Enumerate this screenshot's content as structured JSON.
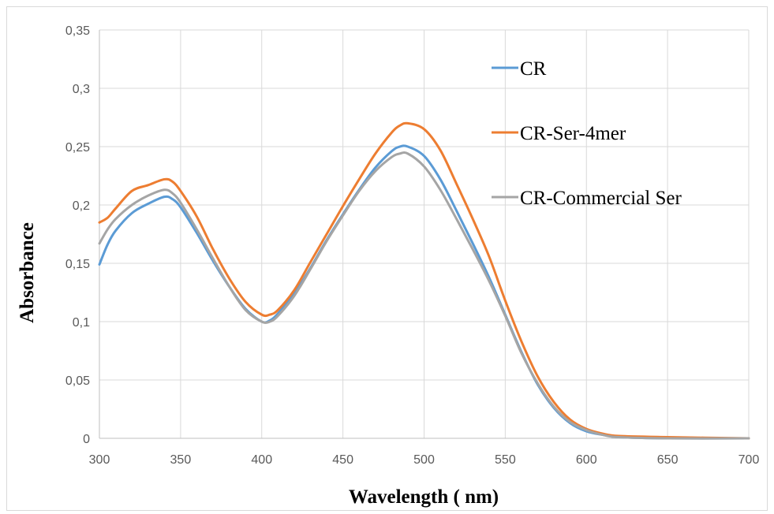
{
  "chart_data": {
    "type": "line",
    "title": "",
    "xlabel": "Wavelength ( nm)",
    "ylabel": "Absorbance",
    "xlim": [
      300,
      700
    ],
    "ylim": [
      0,
      0.35
    ],
    "x_ticks": [
      300,
      350,
      400,
      450,
      500,
      550,
      600,
      650,
      700
    ],
    "x_tick_labels": [
      "300",
      "350",
      "400",
      "450",
      "500",
      "550",
      "600",
      "650",
      "700"
    ],
    "y_ticks": [
      0,
      0.05,
      0.1,
      0.15,
      0.2,
      0.25,
      0.3,
      0.35
    ],
    "y_tick_labels": [
      "0",
      "0,05",
      "0,1",
      "0,15",
      "0,2",
      "0,25",
      "0,3",
      "0,35"
    ],
    "grid": true,
    "legend_position": "top-right",
    "x": [
      300,
      305,
      310,
      320,
      330,
      340,
      345,
      350,
      360,
      370,
      380,
      390,
      400,
      405,
      410,
      420,
      430,
      440,
      450,
      460,
      470,
      480,
      485,
      490,
      500,
      510,
      520,
      530,
      540,
      550,
      560,
      570,
      580,
      590,
      600,
      610,
      620,
      650,
      700
    ],
    "series": [
      {
        "name": "CR",
        "color": "#5b9bd5",
        "values": [
          0.149,
          0.166,
          0.178,
          0.193,
          0.201,
          0.207,
          0.205,
          0.198,
          0.176,
          0.152,
          0.13,
          0.111,
          0.1,
          0.101,
          0.107,
          0.124,
          0.146,
          0.17,
          0.192,
          0.213,
          0.232,
          0.246,
          0.25,
          0.25,
          0.242,
          0.222,
          0.195,
          0.167,
          0.138,
          0.106,
          0.074,
          0.046,
          0.026,
          0.013,
          0.006,
          0.003,
          0.001,
          0.0,
          0.0
        ]
      },
      {
        "name": "CR-Ser-4mer",
        "color": "#ed7d31",
        "values": [
          0.185,
          0.189,
          0.197,
          0.212,
          0.217,
          0.222,
          0.22,
          0.212,
          0.19,
          0.162,
          0.137,
          0.117,
          0.106,
          0.106,
          0.11,
          0.127,
          0.151,
          0.175,
          0.199,
          0.222,
          0.244,
          0.262,
          0.268,
          0.27,
          0.265,
          0.247,
          0.218,
          0.188,
          0.156,
          0.118,
          0.083,
          0.053,
          0.031,
          0.016,
          0.008,
          0.004,
          0.002,
          0.001,
          0.0
        ]
      },
      {
        "name": "CR-Commercial Ser",
        "color": "#a5a5a5",
        "values": [
          0.167,
          0.179,
          0.188,
          0.2,
          0.208,
          0.213,
          0.21,
          0.202,
          0.179,
          0.154,
          0.13,
          0.11,
          0.1,
          0.1,
          0.105,
          0.122,
          0.145,
          0.169,
          0.191,
          0.212,
          0.229,
          0.241,
          0.244,
          0.244,
          0.233,
          0.213,
          0.188,
          0.162,
          0.135,
          0.105,
          0.073,
          0.047,
          0.027,
          0.014,
          0.007,
          0.003,
          0.001,
          0.0,
          0.0
        ]
      }
    ]
  }
}
